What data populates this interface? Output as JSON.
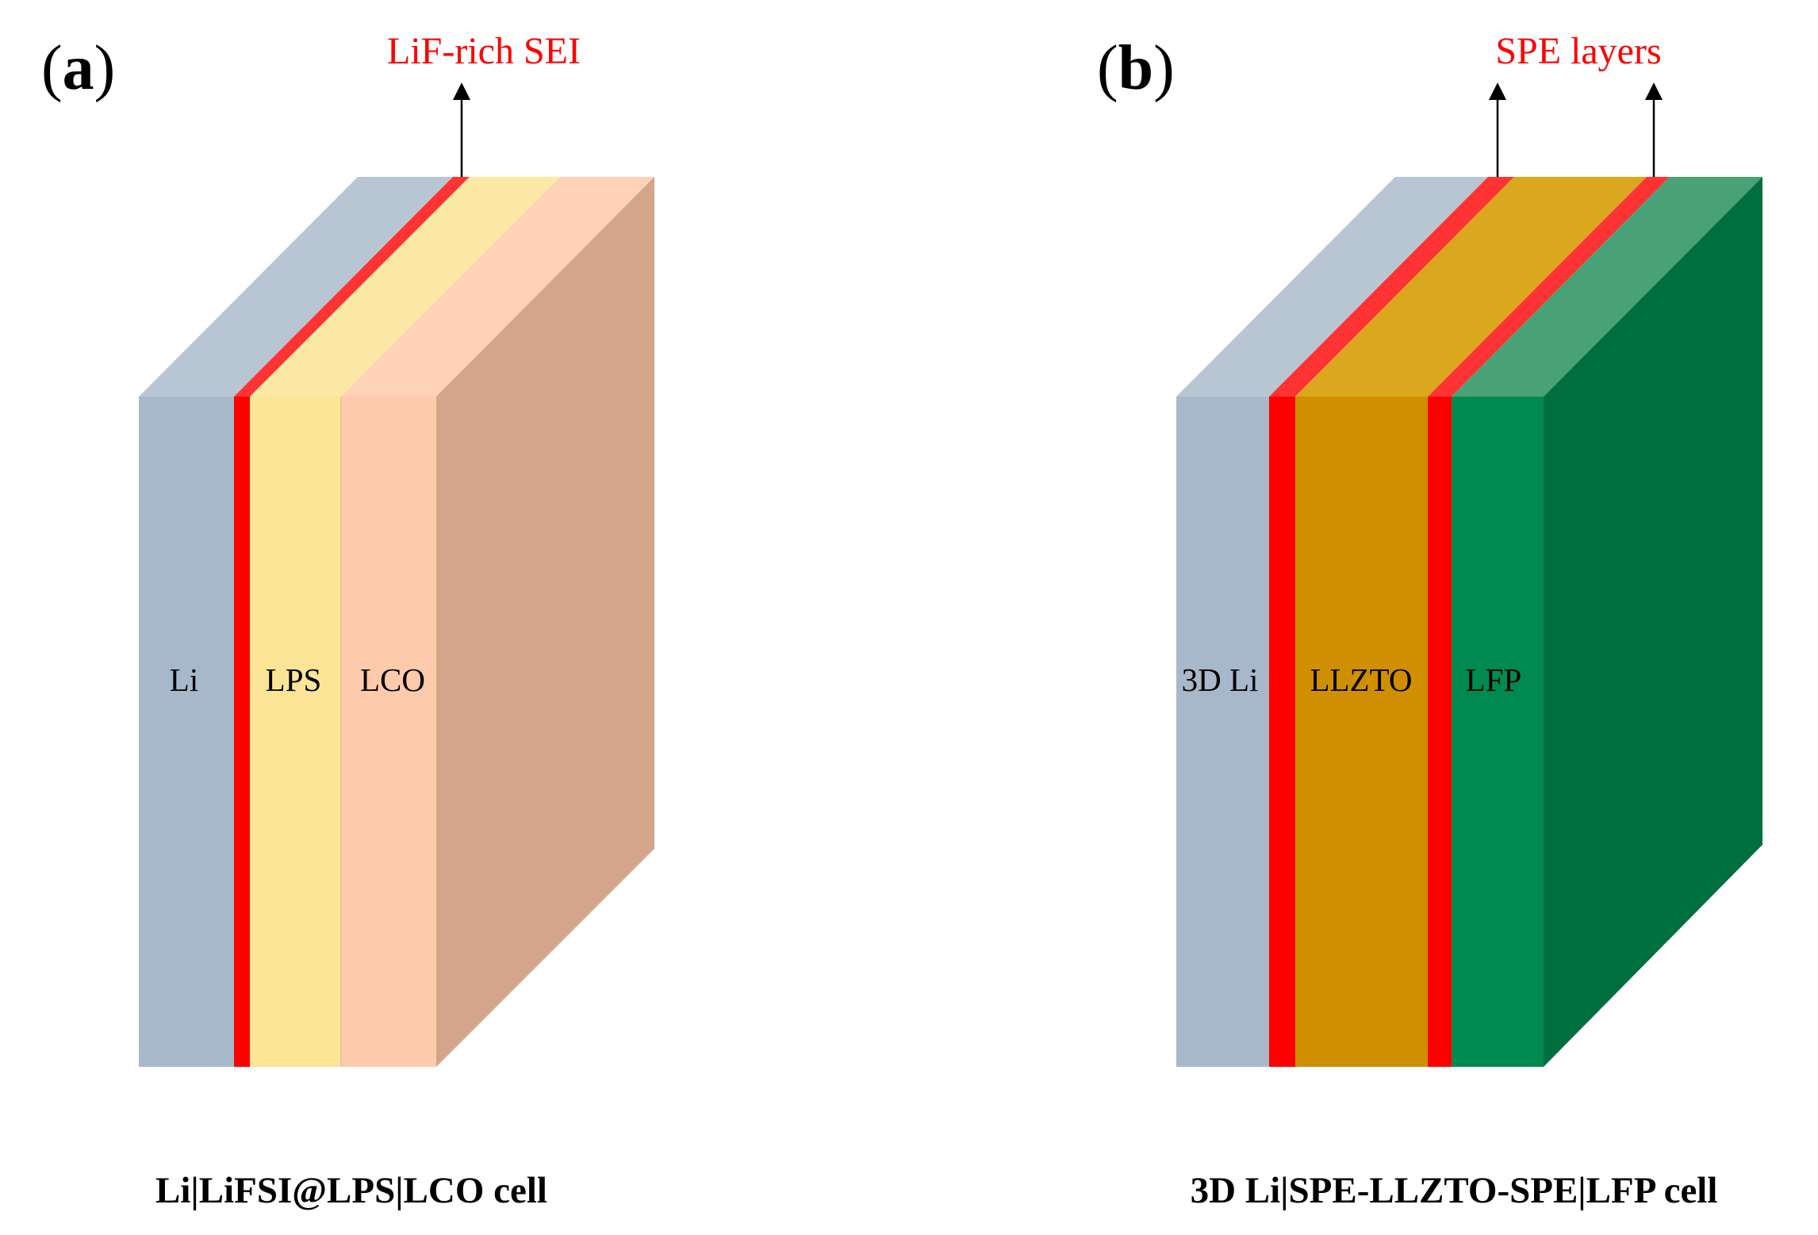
{
  "panels": [
    {
      "label_open": "(",
      "label_letter": "a",
      "label_close": ")",
      "annotation": "LiF-rich SEI",
      "layers": [
        {
          "label": "Li",
          "front_color": "#a8b8cb",
          "top_color": "#b8c6d4"
        },
        {
          "label": "",
          "front_color": "#ff0000",
          "top_color": "#ff3333"
        },
        {
          "label": "LPS",
          "front_color": "#fde598",
          "top_color": "#fde9a6"
        },
        {
          "label": "LCO",
          "front_color": "#fdcbab",
          "top_color": "#fdd2b7",
          "side_color": "#d5a58b"
        }
      ],
      "caption": "Li|LiFSI@LPS|LCO cell"
    },
    {
      "label_open": "(",
      "label_letter": "b",
      "label_close": ")",
      "annotation": "SPE layers",
      "layers": [
        {
          "label": "3D Li",
          "front_color": "#a8b8cb",
          "top_color": "#b8c6d4"
        },
        {
          "label": "",
          "front_color": "#ff0000",
          "top_color": "#ff3333"
        },
        {
          "label": "LLZTO",
          "front_color": "#cf8f00",
          "top_color": "#dba71f"
        },
        {
          "label": "",
          "front_color": "#ff0000",
          "top_color": "#ff3333"
        },
        {
          "label": "LFP",
          "front_color": "#008a50",
          "top_color": "#49a276",
          "side_color": "#006f40"
        }
      ],
      "caption": "3D Li|SPE-LLZTO-SPE|LFP cell"
    }
  ],
  "colors": {
    "annotation": "#ff0000",
    "arrow": "#000000",
    "text": "#000000"
  }
}
